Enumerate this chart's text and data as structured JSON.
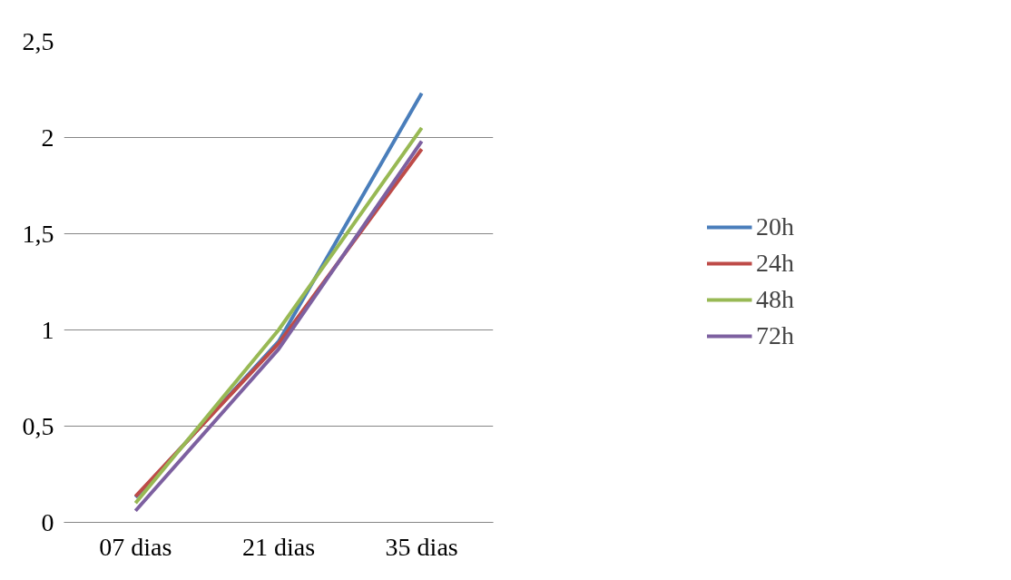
{
  "chart_data": {
    "type": "line",
    "categories": [
      "07 dias",
      "21 dias",
      "35 dias"
    ],
    "series": [
      {
        "name": "20h",
        "color": "#4a7ebb",
        "values": [
          0.13,
          0.94,
          2.23
        ]
      },
      {
        "name": "24h",
        "color": "#be4b48",
        "values": [
          0.135,
          0.93,
          1.94
        ]
      },
      {
        "name": "48h",
        "color": "#98b954",
        "values": [
          0.1,
          1.0,
          2.05
        ]
      },
      {
        "name": "72h",
        "color": "#7d60a0",
        "values": [
          0.06,
          0.9,
          1.98
        ]
      }
    ],
    "ylim": [
      0,
      2.5
    ],
    "yticks": [
      0,
      {
        "value": 0.5,
        "label": "0,5"
      },
      1,
      {
        "value": 1.5,
        "label": "1,5"
      },
      2,
      {
        "value": 2.5,
        "label": "2,5"
      }
    ],
    "grid": "y",
    "legend": "right",
    "marker": "none",
    "line_style": "solid"
  }
}
